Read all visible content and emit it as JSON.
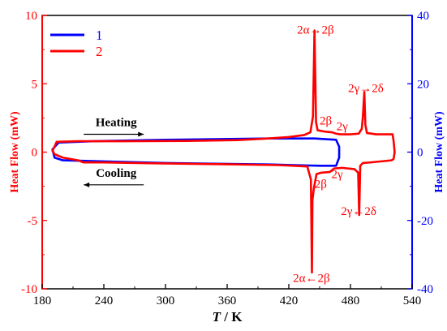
{
  "chart_data": {
    "type": "line",
    "title": "",
    "xlabel": {
      "italic": "T",
      "rest": " / K"
    },
    "ylabel_left": "Heat Flow (mW)",
    "ylabel_right": "Heat Flow (mW)",
    "xlim": [
      180,
      540
    ],
    "ylim_left": [
      -10,
      10
    ],
    "ylim_right": [
      -40,
      40
    ],
    "xticks": [
      "180",
      "240",
      "300",
      "360",
      "420",
      "480",
      "540"
    ],
    "yticks_left": [
      "-10",
      "-5",
      "0",
      "5",
      "10"
    ],
    "yticks_right": [
      "-40",
      "-20",
      "0",
      "20",
      "40"
    ],
    "grid": false,
    "legend_position": "top-left",
    "colors": {
      "left_axis": "#ff0000",
      "right_axis": "#0000ff",
      "axis": "#000000"
    },
    "series": [
      {
        "name": "1",
        "color": "#0000ff",
        "axis": "right",
        "points": [
          [
            466,
            0.9
          ],
          [
            445,
            1.0
          ],
          [
            400,
            1.0
          ],
          [
            300,
            0.9
          ],
          [
            230,
            0.8
          ],
          [
            196,
            0.7
          ],
          [
            190,
            0.2
          ],
          [
            192,
            -0.4
          ],
          [
            200,
            -0.6
          ],
          [
            250,
            -0.7
          ],
          [
            300,
            -0.8
          ],
          [
            400,
            -0.9
          ],
          [
            450,
            -1.0
          ],
          [
            466,
            -1.0
          ],
          [
            469,
            -0.4
          ],
          [
            469,
            0.4
          ],
          [
            466,
            0.9
          ]
        ]
      },
      {
        "name": "2",
        "color": "#ff0000",
        "axis": "left",
        "points": [
          [
            190,
            0.1
          ],
          [
            192,
            0.4
          ],
          [
            194,
            0.75
          ],
          [
            215,
            0.8
          ],
          [
            260,
            0.8
          ],
          [
            320,
            0.82
          ],
          [
            370,
            0.88
          ],
          [
            400,
            1.0
          ],
          [
            420,
            1.1
          ],
          [
            435,
            1.25
          ],
          [
            441,
            1.45
          ],
          [
            443.5,
            2.6
          ],
          [
            445,
            8.9
          ],
          [
            446.5,
            2.2
          ],
          [
            448,
            1.6
          ],
          [
            455,
            1.5
          ],
          [
            462,
            1.45
          ],
          [
            466,
            1.35
          ],
          [
            470,
            1.3
          ],
          [
            480,
            1.3
          ],
          [
            488,
            1.35
          ],
          [
            491,
            1.7
          ],
          [
            492,
            2.5
          ],
          [
            493.5,
            4.4
          ],
          [
            494.5,
            2.0
          ],
          [
            496,
            1.4
          ],
          [
            505,
            1.3
          ],
          [
            515,
            1.3
          ],
          [
            521,
            1.3
          ],
          [
            522,
            0.8
          ],
          [
            523,
            0.0
          ],
          [
            522,
            -0.5
          ],
          [
            520,
            -0.6
          ],
          [
            500,
            -0.75
          ],
          [
            492,
            -0.8
          ],
          [
            489.5,
            -1.0
          ],
          [
            488.5,
            -4.6
          ],
          [
            487.5,
            -1.5
          ],
          [
            484,
            -1.25
          ],
          [
            472,
            -1.15
          ],
          [
            464,
            -1.2
          ],
          [
            460,
            -1.45
          ],
          [
            452,
            -1.5
          ],
          [
            447,
            -1.6
          ],
          [
            444.5,
            -2.6
          ],
          [
            443,
            -3.5
          ],
          [
            442.5,
            -8.8
          ],
          [
            441.5,
            -2.0
          ],
          [
            438,
            -1.05
          ],
          [
            410,
            -0.95
          ],
          [
            350,
            -0.88
          ],
          [
            290,
            -0.82
          ],
          [
            235,
            -0.75
          ],
          [
            220,
            -0.75
          ],
          [
            215,
            -0.6
          ],
          [
            200,
            -0.4
          ],
          [
            192,
            -0.15
          ],
          [
            190,
            0.1
          ]
        ]
      }
    ],
    "annotations": [
      {
        "text": "2α→2β",
        "x": 446,
        "y": 8.95
      },
      {
        "text": "2γ→2δ",
        "x": 495,
        "y": 4.7
      },
      {
        "text": "2β",
        "x": 456,
        "y": 2.3
      },
      {
        "text": "2γ",
        "x": 472,
        "y": 1.9
      },
      {
        "text": "2β",
        "x": 451,
        "y": -2.3
      },
      {
        "text": "2γ",
        "x": 467,
        "y": -1.6
      },
      {
        "text": "2γ←2δ",
        "x": 488,
        "y": -4.3
      },
      {
        "text": "2α←2β",
        "x": 442,
        "y": -9.2
      }
    ],
    "process_labels": [
      {
        "text": "Heating",
        "x": 180,
        "y": 1.9,
        "arrow": "right"
      },
      {
        "text": "Cooling",
        "x": 180,
        "y": -1.8,
        "arrow": "left"
      }
    ]
  }
}
